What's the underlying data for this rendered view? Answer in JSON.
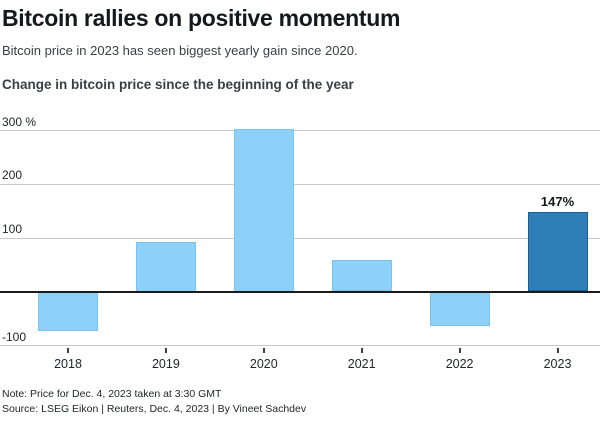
{
  "header": {
    "title": "Bitcoin rallies on positive momentum",
    "subtitle": "Bitcoin price in 2023 has seen biggest yearly gain since 2020.",
    "chart_heading": "Change in bitcoin price since the beginning of the year"
  },
  "chart_data": {
    "type": "bar",
    "title": "Change in bitcoin price since the beginning of the year",
    "categories": [
      "2018",
      "2019",
      "2020",
      "2021",
      "2022",
      "2023"
    ],
    "values": [
      -74,
      92,
      302,
      58,
      -64,
      147
    ],
    "unit": "percent change",
    "ylim": [
      -100,
      300
    ],
    "yticks": [
      {
        "value": 300,
        "label": "300 %"
      },
      {
        "value": 200,
        "label": "200"
      },
      {
        "value": 100,
        "label": "100"
      },
      {
        "value": 0,
        "label": ""
      },
      {
        "value": -100,
        "label": "-100"
      }
    ],
    "grid": true,
    "legend": false,
    "highlight_index": 5,
    "bar_label": {
      "index": 5,
      "text": "147%"
    },
    "colors": {
      "bar": "#8DD1F8",
      "bar_border": "#79C4EF",
      "highlight": "#2E7EB8",
      "highlight_border": "#1E5F93",
      "gridline": "#C9C9C9",
      "zero_line": "#1A1A1A"
    }
  },
  "footer": {
    "note": "Note: Price for Dec. 4, 2023 taken at 3:30 GMT",
    "source": "Source: LSEG Eikon | Reuters, Dec. 4, 2023 | By Vineet Sachdev"
  }
}
